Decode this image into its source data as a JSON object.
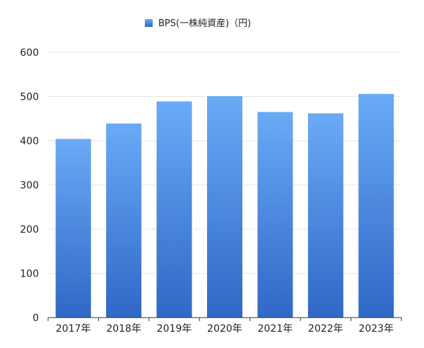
{
  "chart_data": {
    "type": "bar",
    "legend_position": "top-center",
    "series": [
      {
        "name": "BPS(一株純資産)（円)",
        "color": "#3f7fe0",
        "values": [
          404,
          439,
          489,
          501,
          465,
          462,
          506
        ]
      }
    ],
    "categories": [
      "2017年",
      "2018年",
      "2019年",
      "2020年",
      "2021年",
      "2022年",
      "2023年"
    ],
    "ylim": [
      0,
      600
    ],
    "yticks": [
      0,
      100,
      200,
      300,
      400,
      500,
      600
    ],
    "grid": true,
    "colors": {
      "bar_top": "#6aaaf6",
      "bar_bottom": "#2f68c6",
      "grid": "#e6e6e6",
      "axis": "#333333"
    }
  }
}
